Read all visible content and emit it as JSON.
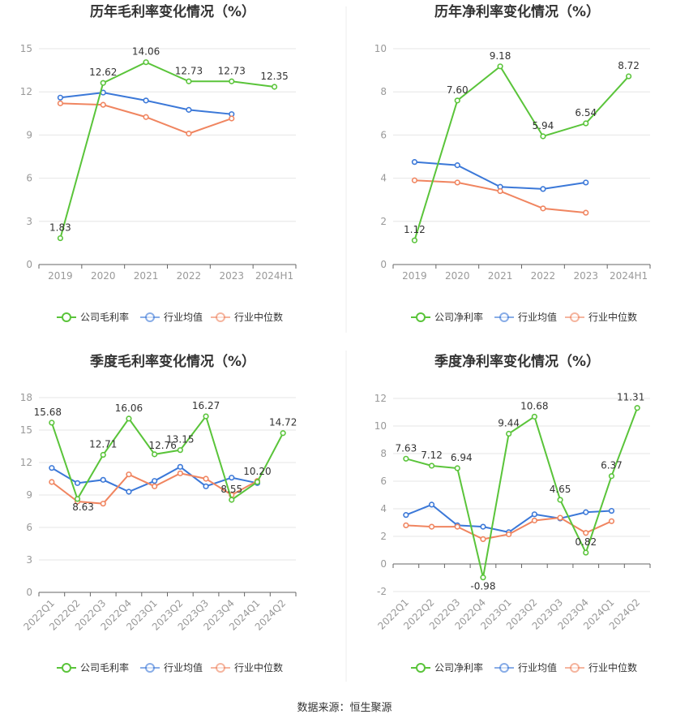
{
  "source_text": "数据来源：恒生聚源",
  "legend": {
    "gross_company": "公司毛利率",
    "net_company": "公司净利率",
    "industry_avg": "行业均值",
    "industry_median": "行业中位数"
  },
  "colors": {
    "company": "#5ac43a",
    "avg": "#3b78d8",
    "median": "#f08560",
    "grid": "#e6e6e6",
    "axis": "#666666"
  },
  "chart_data": [
    {
      "type": "line",
      "title": "历年毛利率变化情况（%）",
      "categories": [
        "2019",
        "2020",
        "2021",
        "2022",
        "2023",
        "2024H1"
      ],
      "ylim": [
        0,
        15
      ],
      "yticks": [
        0,
        3,
        6,
        9,
        12,
        15
      ],
      "series": [
        {
          "name": "公司毛利率",
          "values": [
            1.83,
            12.62,
            14.06,
            12.73,
            12.73,
            12.35
          ],
          "labels": [
            "1.83",
            "12.62",
            "14.06",
            "12.73",
            "12.73",
            "12.35"
          ]
        },
        {
          "name": "行业均值",
          "values": [
            11.6,
            11.95,
            11.4,
            10.75,
            10.45,
            null
          ]
        },
        {
          "name": "行业中位数",
          "values": [
            11.2,
            11.1,
            10.25,
            9.1,
            10.15,
            null
          ]
        }
      ]
    },
    {
      "type": "line",
      "title": "历年净利率变化情况（%）",
      "categories": [
        "2019",
        "2020",
        "2021",
        "2022",
        "2023",
        "2024H1"
      ],
      "ylim": [
        0,
        10
      ],
      "yticks": [
        0,
        2,
        4,
        6,
        8,
        10
      ],
      "series": [
        {
          "name": "公司净利率",
          "values": [
            1.12,
            7.6,
            9.18,
            5.94,
            6.54,
            8.72
          ],
          "labels": [
            "1.12",
            "7.60",
            "9.18",
            "5.94",
            "6.54",
            "8.72"
          ]
        },
        {
          "name": "行业均值",
          "values": [
            4.75,
            4.6,
            3.6,
            3.5,
            3.8,
            null
          ]
        },
        {
          "name": "行业中位数",
          "values": [
            3.9,
            3.8,
            3.4,
            2.6,
            2.4,
            null
          ]
        }
      ]
    },
    {
      "type": "line",
      "title": "季度毛利率变化情况（%）",
      "categories": [
        "2022Q1",
        "2022Q2",
        "2022Q3",
        "2022Q4",
        "2023Q1",
        "2023Q2",
        "2023Q3",
        "2023Q4",
        "2024Q1",
        "2024Q2"
      ],
      "ylim": [
        0,
        18
      ],
      "yticks": [
        0,
        3,
        6,
        9,
        12,
        15,
        18
      ],
      "series": [
        {
          "name": "公司毛利率",
          "values": [
            15.68,
            8.63,
            12.71,
            16.06,
            12.76,
            13.15,
            16.27,
            8.55,
            10.2,
            14.72
          ],
          "labels": [
            "15.68",
            "8.63",
            "12.71",
            "16.06",
            "12.76",
            "13.15",
            "16.27",
            "8.55",
            "10.20",
            "14.72"
          ]
        },
        {
          "name": "行业均值",
          "values": [
            11.5,
            10.1,
            10.4,
            9.3,
            10.3,
            11.6,
            9.8,
            10.6,
            10.1,
            null
          ]
        },
        {
          "name": "行业中位数",
          "values": [
            10.2,
            8.4,
            8.2,
            10.9,
            9.8,
            11.0,
            10.5,
            9.0,
            10.3,
            null
          ]
        }
      ]
    },
    {
      "type": "line",
      "title": "季度净利率变化情况（%）",
      "categories": [
        "2022Q1",
        "2022Q2",
        "2022Q3",
        "2022Q4",
        "2023Q1",
        "2023Q2",
        "2023Q3",
        "2023Q4",
        "2024Q1",
        "2024Q2"
      ],
      "ylim": [
        -2,
        12
      ],
      "yticks": [
        -2,
        0,
        2,
        4,
        6,
        8,
        10,
        12
      ],
      "series": [
        {
          "name": "公司净利率",
          "values": [
            7.63,
            7.12,
            6.94,
            -0.98,
            9.44,
            10.68,
            4.65,
            0.82,
            6.37,
            11.31
          ],
          "labels": [
            "7.63",
            "7.12",
            "6.94",
            "-0.98",
            "9.44",
            "10.68",
            "4.65",
            "0.82",
            "6.37",
            "11.31"
          ]
        },
        {
          "name": "行业均值",
          "values": [
            3.55,
            4.3,
            2.8,
            2.7,
            2.3,
            3.6,
            3.3,
            3.75,
            3.85,
            null
          ]
        },
        {
          "name": "行业中位数",
          "values": [
            2.8,
            2.7,
            2.7,
            1.8,
            2.15,
            3.15,
            3.35,
            2.25,
            3.1,
            null
          ]
        }
      ]
    }
  ]
}
